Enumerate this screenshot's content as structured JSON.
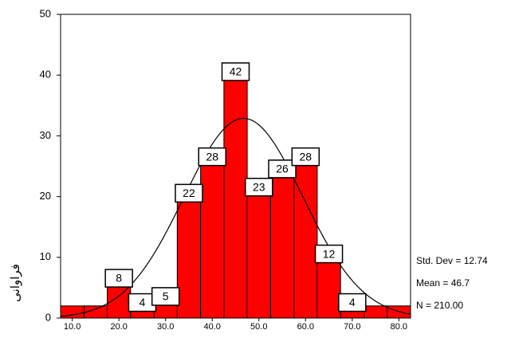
{
  "chart_data": {
    "type": "histogram",
    "y_label": "فراوانی",
    "bins": [
      7.5,
      12.5,
      17.5,
      22.5,
      27.5,
      32.5,
      37.5,
      42.5,
      47.5,
      52.5,
      57.5,
      62.5,
      67.5,
      72.5,
      77.5,
      82.5
    ],
    "values": [
      2,
      2,
      8,
      4,
      5,
      22,
      28,
      42,
      23,
      26,
      28,
      12,
      4,
      2,
      2
    ],
    "value_labels": [
      null,
      null,
      "8",
      "4",
      "5",
      "22",
      "28",
      "42",
      "23",
      "26",
      "28",
      "12",
      "4",
      null,
      null
    ],
    "color": "#ff0000",
    "xlim": [
      7.5,
      82.5
    ],
    "xticks": [
      {
        "value": 10,
        "label": "10.0"
      },
      {
        "value": 20,
        "label": "20.0"
      },
      {
        "value": 30,
        "label": "30.0"
      },
      {
        "value": 40,
        "label": "40.0"
      },
      {
        "value": 50,
        "label": "50.0"
      },
      {
        "value": 60,
        "label": "60.0"
      },
      {
        "value": 70,
        "label": "70.0"
      },
      {
        "value": 80,
        "label": "80.0"
      }
    ],
    "ylim": [
      0,
      50
    ],
    "yticks": [
      0,
      10,
      20,
      30,
      40,
      50
    ],
    "stats": [
      {
        "value": 12.74,
        "label": "Std. Dev = 12.74"
      },
      {
        "value": 46.7,
        "label": "Mean = 46.7"
      },
      {
        "value": 210,
        "label": "N = 210.00"
      }
    ]
  }
}
